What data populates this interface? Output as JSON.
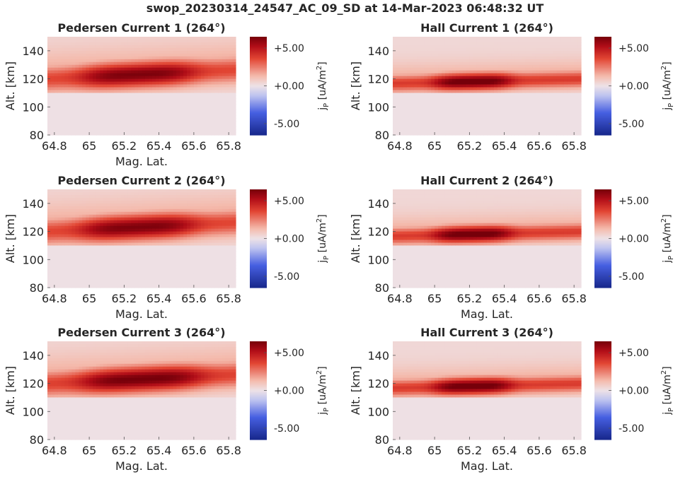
{
  "figure": {
    "title": "swop_20230314_24547_AC_09_SD at 14-Mar-2023 06:48:32 UT"
  },
  "chart_data": [
    {
      "type": "heatmap",
      "title": "Pedersen Current 1 (264°)",
      "xlabel": "Mag. Lat.",
      "ylabel": "Alt. [km]",
      "x_ticks": [
        "64.8",
        "65",
        "65.2",
        "65.4",
        "65.6",
        "65.8"
      ],
      "y_ticks": [
        "80",
        "100",
        "120",
        "140"
      ],
      "xlim": [
        64.76,
        65.84
      ],
      "ylim": [
        80,
        150
      ],
      "colorbar": {
        "label_main": "j",
        "label_sub": "P",
        "label_unit": " [uA/m",
        "label_exp": "2",
        "label_close": "]",
        "ticks": [
          "+5.00",
          "+0.00",
          "-5.00"
        ],
        "tick_values": [
          5,
          0,
          -5
        ],
        "range": [
          -6.5,
          6.5
        ]
      },
      "peak": {
        "alt_center": 123,
        "alt_width": 9,
        "lat_center": 65.28,
        "lat_width": 0.32,
        "max": 6.0,
        "floor": 0.35,
        "tilt": 6
      }
    },
    {
      "type": "heatmap",
      "title": "Hall Current 1 (264°)",
      "xlabel": "",
      "ylabel": "Alt. [km]",
      "x_ticks": [
        "64.8",
        "65",
        "65.2",
        "65.4",
        "65.6",
        "65.8"
      ],
      "y_ticks": [
        "80",
        "100",
        "120",
        "140"
      ],
      "xlim": [
        64.76,
        65.84
      ],
      "ylim": [
        80,
        150
      ],
      "colorbar": {
        "label_main": "j",
        "label_sub": "P",
        "label_unit": " [uA/m",
        "label_exp": "2",
        "label_close": "]",
        "ticks": [
          "+5.00",
          "+0.00",
          "-5.00"
        ],
        "tick_values": [
          5,
          0,
          -5
        ],
        "range": [
          -6.5,
          6.5
        ]
      },
      "peak": {
        "alt_center": 118,
        "alt_width": 6,
        "lat_center": 65.22,
        "lat_width": 0.22,
        "max": 6.5,
        "floor": 0.35,
        "tilt": 3
      }
    },
    {
      "type": "heatmap",
      "title": "Pedersen Current 2 (264°)",
      "xlabel": "Mag. Lat.",
      "ylabel": "Alt. [km]",
      "x_ticks": [
        "64.8",
        "65",
        "65.2",
        "65.4",
        "65.6",
        "65.8"
      ],
      "y_ticks": [
        "80",
        "100",
        "120",
        "140"
      ],
      "xlim": [
        64.76,
        65.84
      ],
      "ylim": [
        80,
        150
      ],
      "colorbar": {
        "label_main": "j",
        "label_sub": "P",
        "label_unit": " [uA/m",
        "label_exp": "2",
        "label_close": "]",
        "ticks": [
          "+5.00",
          "+0.00",
          "-5.00"
        ],
        "tick_values": [
          5,
          0,
          -5
        ],
        "range": [
          -6.5,
          6.5
        ]
      },
      "peak": {
        "alt_center": 123,
        "alt_width": 9,
        "lat_center": 65.28,
        "lat_width": 0.32,
        "max": 6.0,
        "floor": 0.35,
        "tilt": 6
      }
    },
    {
      "type": "heatmap",
      "title": "Hall Current 2 (264°)",
      "xlabel": "Mag. Lat.",
      "ylabel": "Alt. [km]",
      "x_ticks": [
        "64.8",
        "65",
        "65.2",
        "65.4",
        "65.6",
        "65.8"
      ],
      "y_ticks": [
        "80",
        "100",
        "120",
        "140"
      ],
      "xlim": [
        64.76,
        65.84
      ],
      "ylim": [
        80,
        150
      ],
      "colorbar": {
        "label_main": "j",
        "label_sub": "P",
        "label_unit": " [uA/m",
        "label_exp": "2",
        "label_close": "]",
        "ticks": [
          "+5.00",
          "+0.00",
          "-5.00"
        ],
        "tick_values": [
          5,
          0,
          -5
        ],
        "range": [
          -6.5,
          6.5
        ]
      },
      "peak": {
        "alt_center": 118,
        "alt_width": 6,
        "lat_center": 65.22,
        "lat_width": 0.22,
        "max": 6.5,
        "floor": 0.35,
        "tilt": 3
      }
    },
    {
      "type": "heatmap",
      "title": "Pedersen Current 3 (264°)",
      "xlabel": "Mag. Lat.",
      "ylabel": "Alt. [km]",
      "x_ticks": [
        "64.8",
        "65",
        "65.2",
        "65.4",
        "65.6",
        "65.8"
      ],
      "y_ticks": [
        "80",
        "100",
        "120",
        "140"
      ],
      "xlim": [
        64.76,
        65.84
      ],
      "ylim": [
        80,
        150
      ],
      "colorbar": {
        "label_main": "j",
        "label_sub": "P",
        "label_unit": " [uA/m",
        "label_exp": "2",
        "label_close": "]",
        "ticks": [
          "+5.00",
          "+0.00",
          "-5.00"
        ],
        "tick_values": [
          5,
          0,
          -5
        ],
        "range": [
          -6.5,
          6.5
        ]
      },
      "peak": {
        "alt_center": 123,
        "alt_width": 9,
        "lat_center": 65.3,
        "lat_width": 0.34,
        "max": 6.2,
        "floor": 0.35,
        "tilt": 6
      }
    },
    {
      "type": "heatmap",
      "title": "Hall Current 3 (264°)",
      "xlabel": "Mag. Lat.",
      "ylabel": "Alt. [km]",
      "x_ticks": [
        "64.8",
        "65",
        "65.2",
        "65.4",
        "65.6",
        "65.8"
      ],
      "y_ticks": [
        "80",
        "100",
        "120",
        "140"
      ],
      "xlim": [
        64.76,
        65.84
      ],
      "ylim": [
        80,
        150
      ],
      "colorbar": {
        "label_main": "j",
        "label_sub": "P",
        "label_unit": " [uA/m",
        "label_exp": "2",
        "label_close": "]",
        "ticks": [
          "+5.00",
          "+0.00",
          "-5.00"
        ],
        "tick_values": [
          5,
          0,
          -5
        ],
        "range": [
          -6.5,
          6.5
        ]
      },
      "peak": {
        "alt_center": 118,
        "alt_width": 6,
        "lat_center": 65.22,
        "lat_width": 0.22,
        "max": 6.5,
        "floor": 0.35,
        "tilt": 3
      }
    }
  ]
}
